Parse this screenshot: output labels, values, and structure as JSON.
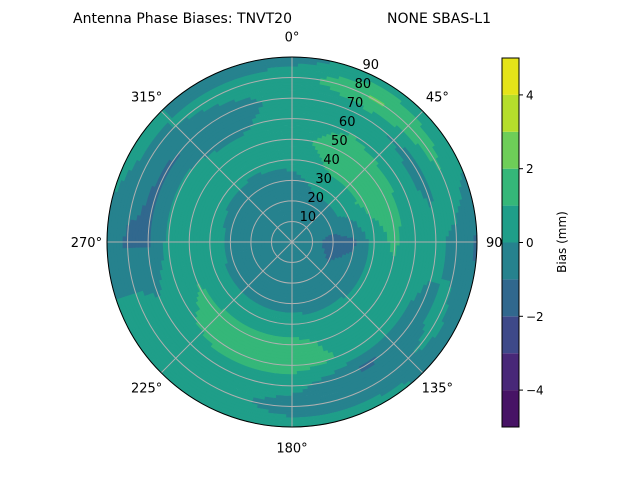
{
  "chart_data": {
    "type": "heatmap",
    "subtype": "polar-filled-contour",
    "title_left": "Antenna Phase Biases: TNVT20",
    "title_right": "NONE SBAS-L1",
    "theta_zero": "top",
    "theta_direction": "clockwise",
    "theta_ticks": [
      "0°",
      "45°",
      "90°",
      "135°",
      "180°",
      "225°",
      "270°",
      "315°"
    ],
    "r_ticks": [
      "10",
      "20",
      "30",
      "40",
      "50",
      "60",
      "70",
      "80",
      "90"
    ],
    "r_range": [
      0,
      90
    ],
    "grid": true,
    "azimuths": [
      0,
      30,
      60,
      90,
      120,
      150,
      180,
      210,
      240,
      270,
      300,
      330
    ],
    "radii": [
      0,
      10,
      20,
      30,
      40,
      50,
      60,
      70,
      80,
      90
    ],
    "values": [
      [
        -0.5,
        -0.5,
        -0.5,
        -0.5,
        -0.5,
        -0.5,
        -0.5,
        -0.5,
        -0.5,
        -0.5,
        -0.5,
        -0.5
      ],
      [
        -0.5,
        -0.5,
        -0.5,
        -0.8,
        -0.7,
        -0.5,
        -0.5,
        -0.5,
        -0.5,
        -0.5,
        -0.5,
        -0.5
      ],
      [
        -0.5,
        -0.3,
        -0.5,
        -1.3,
        -1.0,
        -0.5,
        -0.5,
        -0.5,
        -0.5,
        -0.5,
        -0.5,
        -0.5
      ],
      [
        -0.3,
        0.3,
        0.4,
        -1.2,
        -0.6,
        -0.5,
        -0.5,
        -0.5,
        -0.4,
        -0.2,
        -0.5,
        -0.5
      ],
      [
        0.3,
        1.2,
        1.3,
        0.5,
        0.2,
        0.3,
        0.5,
        0.5,
        0.5,
        0.6,
        0.4,
        0.2
      ],
      [
        0.7,
        1.5,
        1.5,
        1.2,
        0.5,
        0.6,
        1.3,
        1.3,
        1.1,
        0.6,
        0.5,
        0.5
      ],
      [
        0.5,
        1.0,
        0.5,
        0.4,
        0.2,
        0.8,
        1.5,
        1.5,
        0.8,
        0.3,
        0.2,
        -0.3
      ],
      [
        0.3,
        0.2,
        -0.4,
        0.3,
        -0.3,
        -1.2,
        0.4,
        0.5,
        0.4,
        -1.1,
        -1.2,
        -0.5
      ],
      [
        0.5,
        2.2,
        1.2,
        -0.3,
        0.3,
        -0.5,
        -0.5,
        0.5,
        0.8,
        -1.2,
        -0.3,
        0.3
      ],
      [
        -0.5,
        0.5,
        0.3,
        -1.2,
        -0.5,
        0.3,
        0.5,
        0.5,
        0.3,
        -0.5,
        0.5,
        -0.5
      ]
    ],
    "levels": [
      -5,
      -4,
      -3,
      -2,
      -1,
      0,
      1,
      2,
      3,
      4,
      5
    ],
    "level_colors": [
      "#471365",
      "#482878",
      "#3e4989",
      "#31688e",
      "#26828e",
      "#1f9e89",
      "#35b779",
      "#6ece58",
      "#b5de2b",
      "#e5e419"
    ],
    "colorbar": {
      "label": "Bias (mm)",
      "ticks": [
        "−4",
        "−2",
        "0",
        "2",
        "4"
      ],
      "range": [
        -5,
        5
      ]
    }
  }
}
